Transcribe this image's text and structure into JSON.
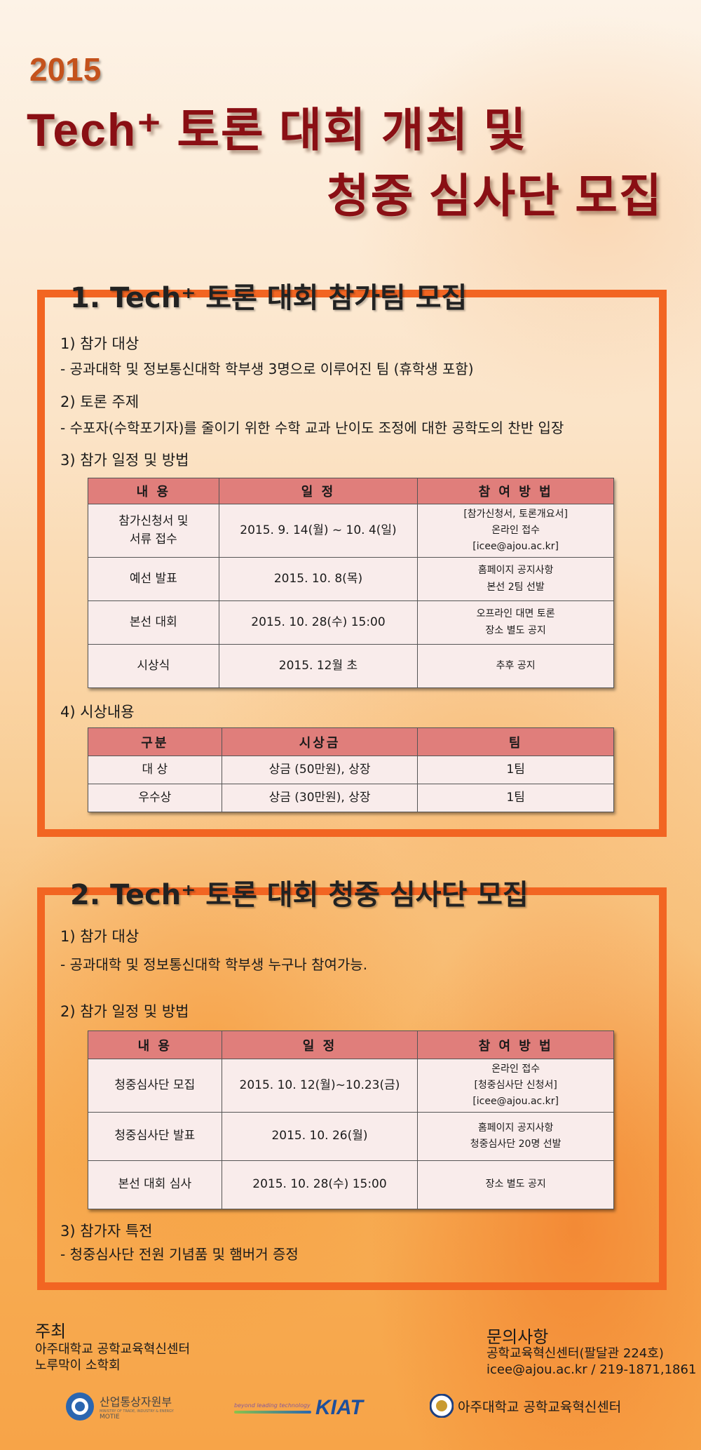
{
  "header": {
    "year": "2015",
    "title_line1": "Tech⁺ 토론 대회 개최 및",
    "title_line2": "청중 심사단 모집"
  },
  "section1": {
    "heading": "1. Tech⁺ 토론 대회 참가팀 모집",
    "target_label": "1) 참가 대상",
    "target_text": "- 공과대학 및 정보통신대학 학부생 3명으로 이루어진 팀 (휴학생 포함)",
    "topic_label": "2) 토론 주제",
    "topic_text": "- 수포자(수학포기자)를 줄이기 위한 수학 교과 난이도 조정에 대한 공학도의 찬반 입장",
    "schedule_label": "3) 참가 일정 및 방법",
    "schedule_table": {
      "headers": [
        "내 용",
        "일 정",
        "참 여 방 법"
      ],
      "rows": [
        [
          "참가신청서 및\n서류 접수",
          "2015. 9. 14(월) ~ 10. 4(일)",
          "[참가신청서, 토론개요서]\n온라인 접수\n[icee@ajou.ac.kr]"
        ],
        [
          "예선 발표",
          "2015. 10. 8(목)",
          "홈페이지 공지사항\n본선 2팀 선발"
        ],
        [
          "본선 대회",
          "2015. 10. 28(수) 15:00",
          "오프라인 대면 토론\n장소 별도 공지"
        ],
        [
          "시상식",
          "2015. 12월 초",
          "추후 공지"
        ]
      ]
    },
    "award_label": "4) 시상내용",
    "award_table": {
      "headers": [
        "구분",
        "시상금",
        "팀"
      ],
      "rows": [
        [
          "대 상",
          "상금 (50만원), 상장",
          "1팀"
        ],
        [
          "우수상",
          "상금 (30만원), 상장",
          "1팀"
        ]
      ]
    }
  },
  "section2": {
    "heading": "2. Tech⁺ 토론 대회 청중 심사단 모집",
    "target_label": "1) 참가 대상",
    "target_text": "- 공과대학 및 정보통신대학 학부생 누구나 참여가능.",
    "schedule_label": "2) 참가 일정 및 방법",
    "schedule_table": {
      "headers": [
        "내 용",
        "일 정",
        "참 여 방 법"
      ],
      "rows": [
        [
          "청중심사단 모집",
          "2015. 10. 12(월)~10.23(금)",
          "온라인 접수\n[청중심사단 신청서]\n[icee@ajou.ac.kr]"
        ],
        [
          "청중심사단 발표",
          "2015. 10. 26(월)",
          "홈페이지 공지사항\n청중심사단 20명 선발"
        ],
        [
          "본선 대회 심사",
          "2015. 10. 28(수) 15:00",
          "장소 별도 공지"
        ]
      ]
    },
    "benefit_label": "3) 참가자 특전",
    "benefit_text": "- 청중심사단 전원 기념품 및 햄버거 증정"
  },
  "footer": {
    "host_label": "주최",
    "host_lines": [
      "아주대학교 공학교육혁신센터",
      "노루막이 소학회"
    ],
    "contact_label": "문의사항",
    "contact_lines": [
      "공학교육혁신센터(팔달관 224호)",
      "icee@ajou.ac.kr / 219-1871,1861"
    ],
    "logos": {
      "motie_name": "산업통상자원부",
      "motie_sub": "MINISTRY OF TRADE, INDUSTRY & ENERGY",
      "motie_abbr": "MOTIE",
      "kiat_tagline": "beyond leading technology",
      "kiat_name": "KIAT",
      "ajou_name": "아주대학교  공학교육혁신센터"
    }
  },
  "colors": {
    "accent_border": "#f26522",
    "title": "#8a0f14",
    "table_header": "#e07e7b",
    "table_cell": "#f9eceb"
  }
}
